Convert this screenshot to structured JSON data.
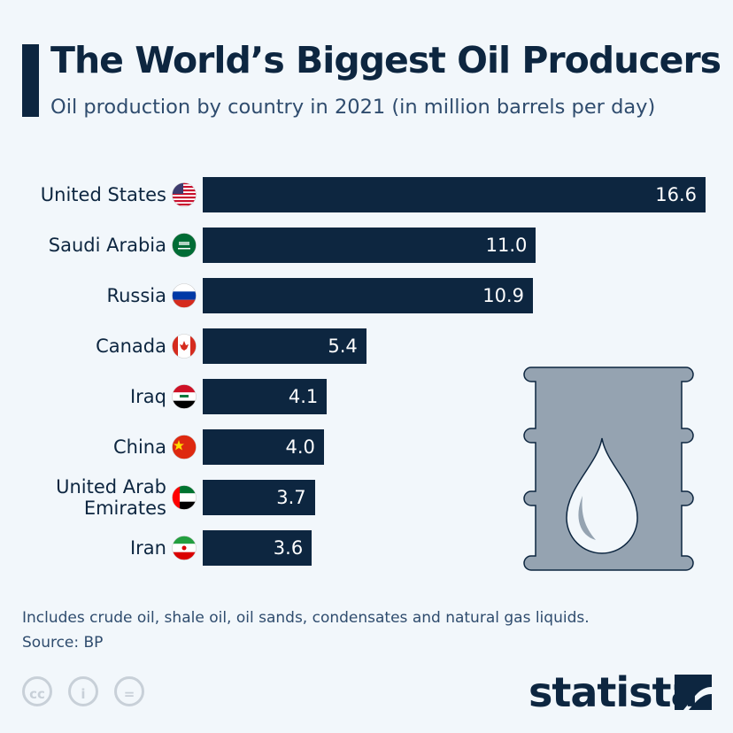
{
  "chart_data": {
    "type": "bar",
    "orientation": "horizontal",
    "title": "The World’s Biggest Oil Producers",
    "subtitle": "Oil production by country in 2021 (in million barrels per day)",
    "categories": [
      "United States",
      "Saudi Arabia",
      "Russia",
      "Canada",
      "Iraq",
      "China",
      "United Arab Emirates",
      "Iran"
    ],
    "category_lines": [
      [
        "United States"
      ],
      [
        "Saudi Arabia"
      ],
      [
        "Russia"
      ],
      [
        "Canada"
      ],
      [
        "Iraq"
      ],
      [
        "China"
      ],
      [
        "United Arab",
        "Emirates"
      ],
      [
        "Iran"
      ]
    ],
    "values": [
      16.6,
      11.0,
      10.9,
      5.4,
      4.1,
      4.0,
      3.7,
      3.6
    ],
    "value_labels": [
      "16.6",
      "11.0",
      "10.9",
      "5.4",
      "4.1",
      "4.0",
      "3.7",
      "3.6"
    ],
    "flags": [
      "us-flag-icon",
      "saudi-arabia-flag-icon",
      "russia-flag-icon",
      "canada-flag-icon",
      "iraq-flag-icon",
      "china-flag-icon",
      "uae-flag-icon",
      "iran-flag-icon"
    ],
    "xlim": [
      0,
      16.6
    ],
    "bar_color": "#0d2640"
  },
  "footer": {
    "note": "Includes crude oil, shale oil, oil sands, condensates and natural gas liquids.",
    "source": "Source: BP",
    "license": [
      "cc",
      "i",
      "="
    ],
    "brand": "statista"
  }
}
